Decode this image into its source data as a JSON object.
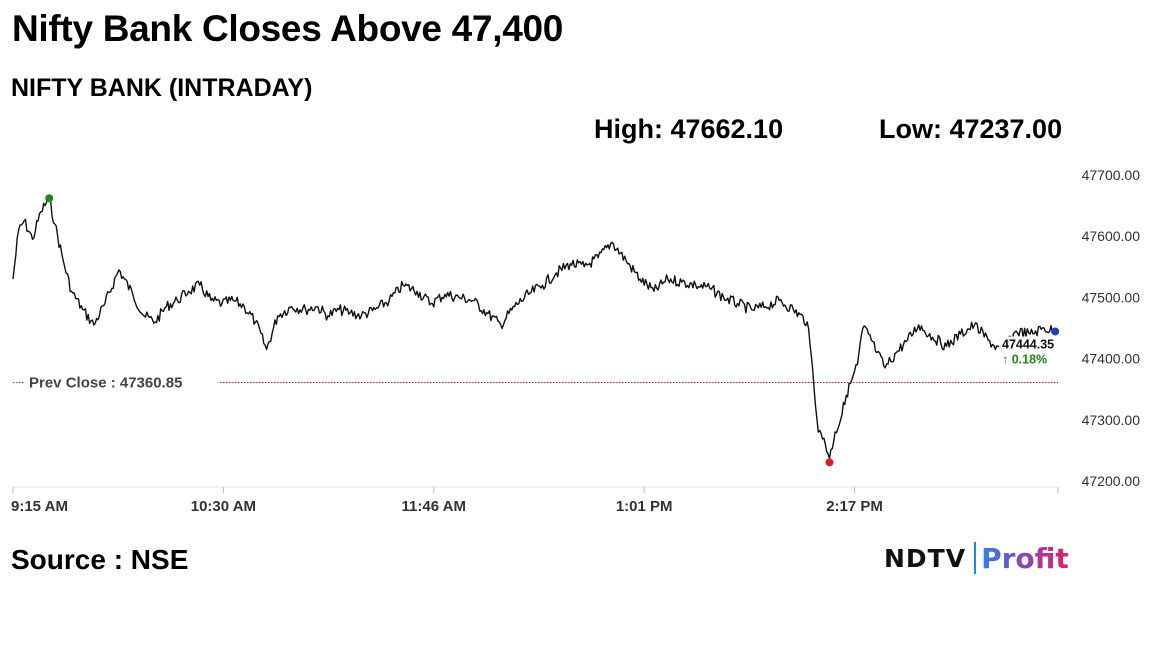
{
  "headline": "Nifty Bank Closes Above 47,400",
  "subtitle": "NIFTY BANK (INTRADAY)",
  "stats": {
    "high_label": "High: 47662.10",
    "low_label": "Low: 47237.00",
    "high": 47662.1,
    "low": 47237.0
  },
  "source": "Source : NSE",
  "logo": {
    "left": "NDTV",
    "right": "Profit"
  },
  "chart_data": {
    "type": "line",
    "title": "NIFTY BANK (INTRADAY)",
    "xlabel": "",
    "ylabel": "",
    "xticks": [
      "9:15 AM",
      "10:30 AM",
      "11:46 AM",
      "1:01 PM",
      "2:17 PM"
    ],
    "xlim": [
      "9:15",
      "15:30"
    ],
    "yticks": [
      47200,
      47300,
      47400,
      47500,
      47600,
      47700
    ],
    "ytick_labels": [
      "47200.00",
      "47300.00",
      "47400.00",
      "47500.00",
      "47600.00",
      "47700.00"
    ],
    "ylim": [
      47200,
      47700
    ],
    "grid": false,
    "prev_close": 47360.85,
    "prev_close_label": "Prev Close : 47360.85",
    "last_value_label": "47444.35",
    "change_label": "↑ 0.18%",
    "colors": {
      "line": "#111111",
      "high_marker": "#1a8a1a",
      "low_marker": "#e02020",
      "last_marker": "#1f3fbf",
      "prev_close": "#b02020",
      "change": "#1a8a1a"
    },
    "series": [
      {
        "x": [
          "9:15",
          "9:17",
          "9:19",
          "9:22",
          "9:25",
          "9:28",
          "9:30",
          "9:33",
          "9:36",
          "9:40",
          "9:44",
          "9:48",
          "9:53",
          "9:58",
          "10:02",
          "10:06",
          "10:10",
          "10:14",
          "10:18",
          "10:22",
          "10:26",
          "10:30",
          "10:34",
          "10:38",
          "10:42",
          "10:46",
          "10:50",
          "10:55",
          "11:00",
          "11:04",
          "11:08",
          "11:12",
          "11:16",
          "11:20",
          "11:25",
          "11:30",
          "11:35",
          "11:40",
          "11:45",
          "11:50",
          "11:55",
          "12:00",
          "12:05",
          "12:10",
          "12:15",
          "12:20",
          "12:25",
          "12:30",
          "12:35",
          "12:40",
          "12:45",
          "12:50",
          "12:55",
          "13:00",
          "13:05",
          "13:10",
          "13:15",
          "13:20",
          "13:25",
          "13:30",
          "13:35",
          "13:40",
          "13:45",
          "13:50",
          "13:55",
          "14:00",
          "14:02",
          "14:04",
          "14:06",
          "14:08",
          "14:10",
          "14:12",
          "14:14",
          "14:16",
          "14:18",
          "14:20",
          "14:22",
          "14:25",
          "14:28",
          "14:32",
          "14:36",
          "14:40",
          "14:45",
          "14:50",
          "14:55",
          "15:00",
          "15:05",
          "15:10",
          "15:15",
          "15:20",
          "15:25",
          "15:29"
        ],
        "y": [
          47530,
          47610,
          47625,
          47595,
          47640,
          47662.1,
          47620,
          47560,
          47510,
          47480,
          47455,
          47490,
          47545,
          47505,
          47470,
          47460,
          47485,
          47495,
          47510,
          47520,
          47495,
          47490,
          47495,
          47485,
          47460,
          47415,
          47470,
          47485,
          47480,
          47485,
          47470,
          47480,
          47475,
          47470,
          47480,
          47495,
          47520,
          47510,
          47490,
          47505,
          47500,
          47495,
          47475,
          47455,
          47485,
          47505,
          47520,
          47540,
          47555,
          47550,
          47565,
          47590,
          47560,
          47530,
          47510,
          47530,
          47525,
          47520,
          47515,
          47500,
          47490,
          47480,
          47485,
          47495,
          47480,
          47460,
          47380,
          47280,
          47270,
          47237,
          47280,
          47300,
          47340,
          47365,
          47390,
          47450,
          47440,
          47410,
          47385,
          47410,
          47430,
          47455,
          47435,
          47420,
          47440,
          47455,
          47430,
          47410,
          47445,
          47440,
          47450,
          47444.35
        ]
      }
    ]
  }
}
